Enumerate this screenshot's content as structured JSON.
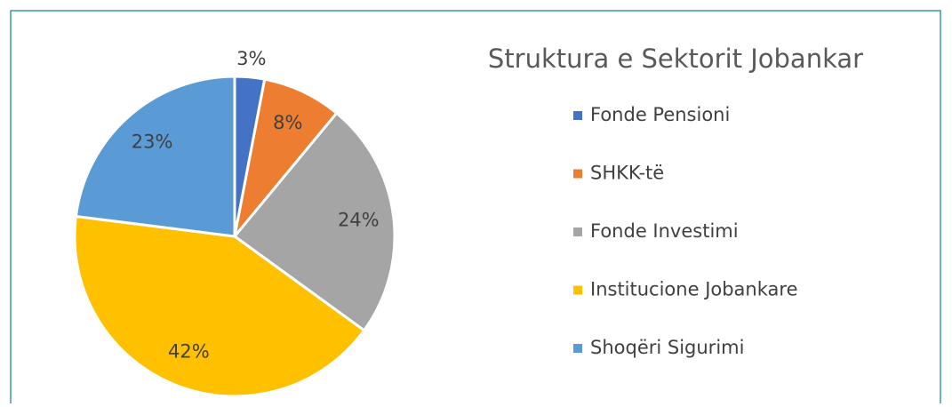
{
  "chart_data": {
    "type": "pie",
    "title": "Struktura e Sektorit Jobankar",
    "categories": [
      "Fonde Pensioni",
      "SHKK-të",
      "Fonde Investimi",
      "Institucione Jobankare",
      "Shoqëri Sigurimi"
    ],
    "values": [
      3,
      8,
      24,
      42,
      23
    ],
    "value_labels": [
      "3%",
      "8%",
      "24%",
      "42%",
      "23%"
    ],
    "colors": [
      "#4472c4",
      "#ed7d31",
      "#a5a5a5",
      "#ffc000",
      "#5b9bd5"
    ],
    "legend": "right"
  }
}
